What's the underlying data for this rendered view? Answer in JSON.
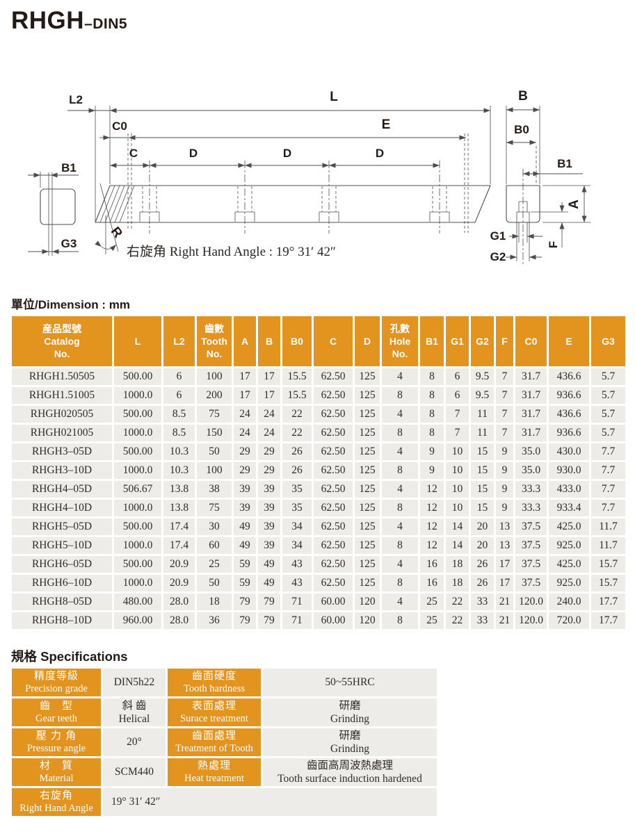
{
  "page": {
    "title_main": "RHGH",
    "title_suffix": "–DIN5",
    "unit_label": "單位/Dimension : mm",
    "spec_heading": "規格 Specifications"
  },
  "drawing": {
    "labels": {
      "L": "L",
      "L2": "L2",
      "C0": "C0",
      "E": "E",
      "C": "C",
      "D": "D",
      "R": "R",
      "B": "B",
      "B0": "B0",
      "B1": "B1",
      "A": "A",
      "F": "F",
      "G1": "G1",
      "G2": "G2",
      "G3": "G3"
    },
    "angle_note": "右旋角 Right Hand Angle : 19°  31′  42″"
  },
  "dimension_table": {
    "columns": [
      [
        "産品型號",
        "Catalog",
        "No."
      ],
      [
        "L"
      ],
      [
        "L2"
      ],
      [
        "齒數",
        "Tooth",
        "No."
      ],
      [
        "A"
      ],
      [
        "B"
      ],
      [
        "B0"
      ],
      [
        "C"
      ],
      [
        "D"
      ],
      [
        "孔數",
        "Hole",
        "No."
      ],
      [
        "B1"
      ],
      [
        "G1"
      ],
      [
        "G2"
      ],
      [
        "F"
      ],
      [
        "C0"
      ],
      [
        "E"
      ],
      [
        "G3"
      ]
    ],
    "rows": [
      [
        "RHGH1.50505",
        "500.00",
        "6",
        "100",
        "17",
        "17",
        "15.5",
        "62.50",
        "125",
        "4",
        "8",
        "6",
        "9.5",
        "7",
        "31.7",
        "436.6",
        "5.7"
      ],
      [
        "RHGH1.51005",
        "1000.0",
        "6",
        "200",
        "17",
        "17",
        "15.5",
        "62.50",
        "125",
        "8",
        "8",
        "6",
        "9.5",
        "7",
        "31.7",
        "936.6",
        "5.7"
      ],
      [
        "RHGH020505",
        "500.00",
        "8.5",
        "75",
        "24",
        "24",
        "22",
        "62.50",
        "125",
        "4",
        "8",
        "7",
        "11",
        "7",
        "31.7",
        "436.6",
        "5.7"
      ],
      [
        "RHGH021005",
        "1000.0",
        "8.5",
        "150",
        "24",
        "24",
        "22",
        "62.50",
        "125",
        "8",
        "8",
        "7",
        "11",
        "7",
        "31.7",
        "936.6",
        "5.7"
      ],
      [
        "RHGH3–05D",
        "500.00",
        "10.3",
        "50",
        "29",
        "29",
        "26",
        "62.50",
        "125",
        "4",
        "9",
        "10",
        "15",
        "9",
        "35.0",
        "430.0",
        "7.7"
      ],
      [
        "RHGH3–10D",
        "1000.0",
        "10.3",
        "100",
        "29",
        "29",
        "26",
        "62.50",
        "125",
        "8",
        "9",
        "10",
        "15",
        "9",
        "35.0",
        "930.0",
        "7.7"
      ],
      [
        "RHGH4–05D",
        "506.67",
        "13.8",
        "38",
        "39",
        "39",
        "35",
        "62.50",
        "125",
        "4",
        "12",
        "10",
        "15",
        "9",
        "33.3",
        "433.0",
        "7.7"
      ],
      [
        "RHGH4–10D",
        "1000.0",
        "13.8",
        "75",
        "39",
        "39",
        "35",
        "62.50",
        "125",
        "8",
        "12",
        "10",
        "15",
        "9",
        "33.3",
        "933.4",
        "7.7"
      ],
      [
        "RHGH5–05D",
        "500.00",
        "17.4",
        "30",
        "49",
        "39",
        "34",
        "62.50",
        "125",
        "4",
        "12",
        "14",
        "20",
        "13",
        "37.5",
        "425.0",
        "11.7"
      ],
      [
        "RHGH5–10D",
        "1000.0",
        "17.4",
        "60",
        "49",
        "39",
        "34",
        "62.50",
        "125",
        "8",
        "12",
        "14",
        "20",
        "13",
        "37.5",
        "925.0",
        "11.7"
      ],
      [
        "RHGH6–05D",
        "500.00",
        "20.9",
        "25",
        "59",
        "49",
        "43",
        "62.50",
        "125",
        "4",
        "16",
        "18",
        "26",
        "17",
        "37.5",
        "425.0",
        "15.7"
      ],
      [
        "RHGH6–10D",
        "1000.0",
        "20.9",
        "50",
        "59",
        "49",
        "43",
        "62.50",
        "125",
        "8",
        "16",
        "18",
        "26",
        "17",
        "37.5",
        "925.0",
        "15.7"
      ],
      [
        "RHGH8–05D",
        "480.00",
        "28.0",
        "18",
        "79",
        "79",
        "71",
        "60.00",
        "120",
        "4",
        "25",
        "22",
        "33",
        "21",
        "120.0",
        "240.0",
        "17.7"
      ],
      [
        "RHGH8–10D",
        "960.00",
        "28.0",
        "36",
        "79",
        "79",
        "71",
        "60.00",
        "120",
        "8",
        "25",
        "22",
        "33",
        "21",
        "120.0",
        "720.0",
        "17.7"
      ]
    ]
  },
  "spec_table": {
    "rows": [
      {
        "cells": [
          {
            "kind": "label",
            "lines": [
              "精度等級",
              "Precision grade"
            ]
          },
          {
            "kind": "value",
            "lines": [
              "DIN5h22"
            ]
          },
          {
            "kind": "label",
            "lines": [
              "齒面硬度",
              "Tooth hardness"
            ]
          },
          {
            "kind": "value",
            "lines": [
              "50~55HRC"
            ]
          }
        ]
      },
      {
        "cells": [
          {
            "kind": "label",
            "lines": [
              "齒　型",
              "Gear teeth"
            ]
          },
          {
            "kind": "value",
            "lines": [
              "斜 齒",
              "Helical"
            ]
          },
          {
            "kind": "label",
            "lines": [
              "表面處理",
              "Surace treatment"
            ]
          },
          {
            "kind": "value",
            "lines": [
              "研磨",
              "Grinding"
            ]
          }
        ]
      },
      {
        "cells": [
          {
            "kind": "label",
            "lines": [
              "壓 力 角",
              "Pressure angle"
            ]
          },
          {
            "kind": "value",
            "lines": [
              "20°"
            ]
          },
          {
            "kind": "label",
            "lines": [
              "齒面處理",
              "Treatment of Tooth"
            ]
          },
          {
            "kind": "value",
            "lines": [
              "研磨",
              "Grinding"
            ]
          }
        ]
      },
      {
        "cells": [
          {
            "kind": "label",
            "lines": [
              "材　質",
              "Material"
            ]
          },
          {
            "kind": "value",
            "lines": [
              "SCM440"
            ]
          },
          {
            "kind": "label",
            "lines": [
              "熱處理",
              "Heat treatment"
            ]
          },
          {
            "kind": "value",
            "lines": [
              "齒面高周波熱處理",
              "Tooth surface induction hardened"
            ]
          }
        ]
      },
      {
        "cells": [
          {
            "kind": "label",
            "lines": [
              "右旋角",
              "Right Hand Angle"
            ]
          },
          {
            "kind": "value",
            "lines": [
              "19°  31′  42″"
            ],
            "span": 3,
            "align": "left"
          }
        ]
      }
    ]
  },
  "colors": {
    "accent_orange": "#E2941F",
    "cell_gray": "#EDECE9",
    "line": "#4D4D4D",
    "text_dark": "#231A15"
  }
}
